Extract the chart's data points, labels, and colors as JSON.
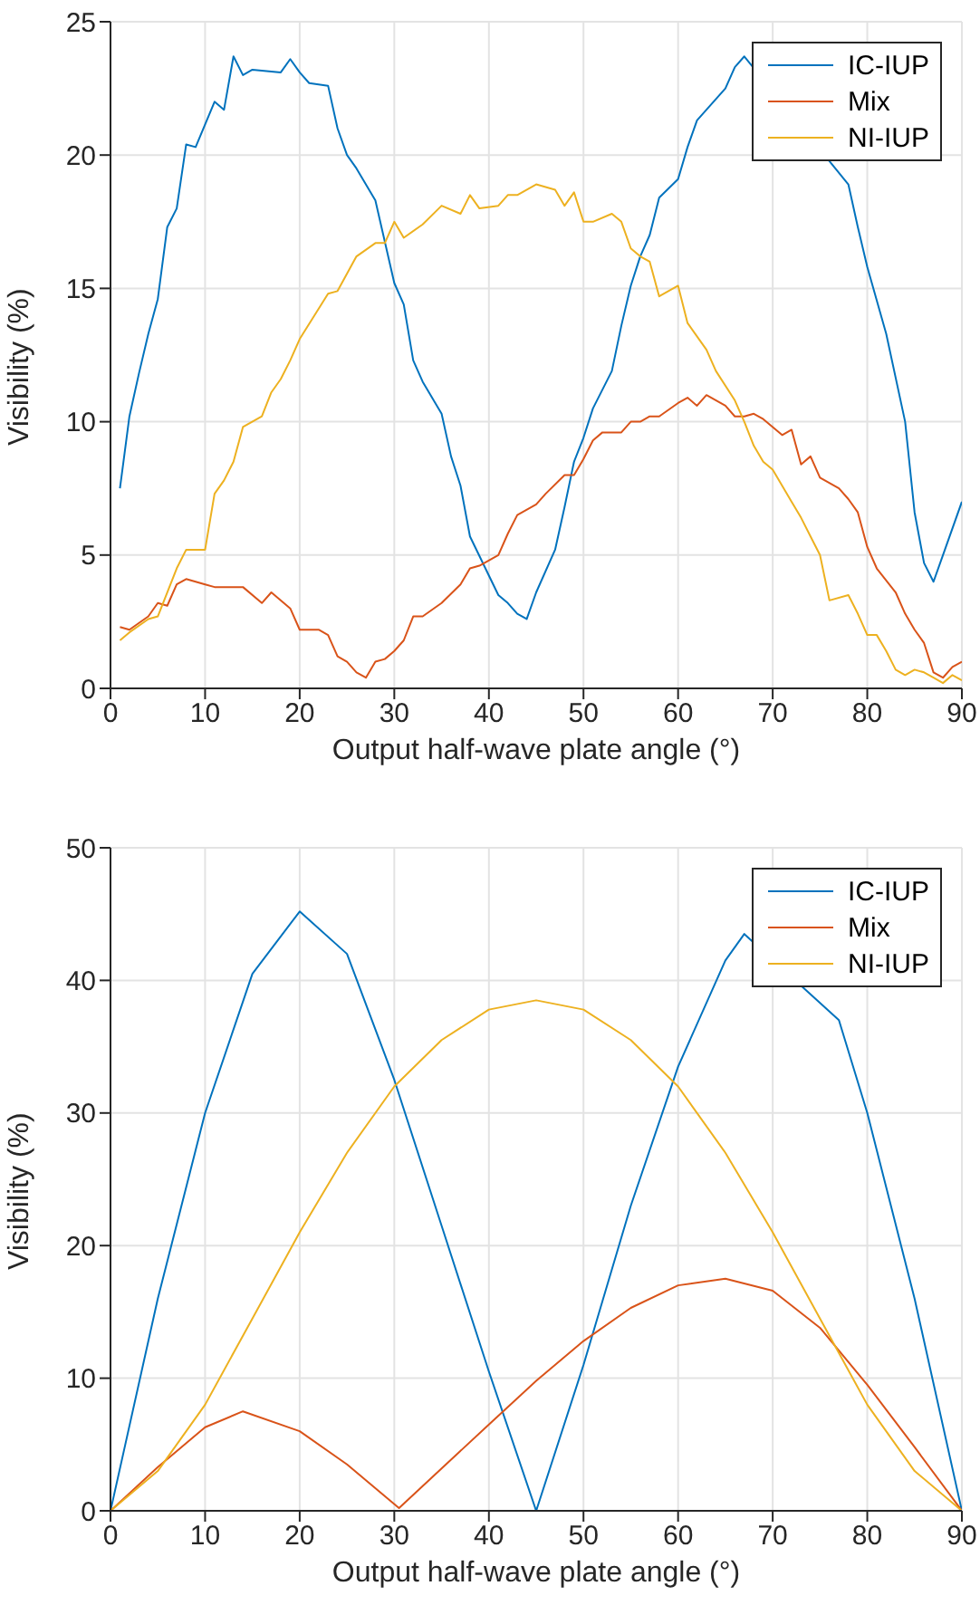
{
  "chart_data": [
    {
      "type": "line",
      "xlabel": "Output half-wave plate angle (°)",
      "ylabel": "Visibility (%)",
      "xlim": [
        0,
        90
      ],
      "xticks": [
        0,
        10,
        20,
        30,
        40,
        50,
        60,
        70,
        80,
        90
      ],
      "ylim": [
        0,
        25
      ],
      "yticks": [
        0,
        5,
        10,
        15,
        20,
        25
      ],
      "grid": true,
      "legend": "top right",
      "series": [
        {
          "name": "IC-IUP",
          "color": "#0072bd",
          "x": [
            1,
            2,
            3,
            4,
            5,
            6,
            7,
            8,
            9,
            11,
            12,
            13,
            14,
            15,
            18,
            19,
            20,
            21,
            23,
            24,
            25,
            26,
            28,
            30,
            31,
            32,
            33,
            35,
            36,
            37,
            38,
            41,
            42,
            43,
            44,
            45,
            47,
            48,
            49,
            50,
            51,
            53,
            54,
            55,
            56,
            57,
            58,
            60,
            61,
            62,
            63,
            65,
            66,
            67,
            78,
            79,
            80,
            82,
            84,
            85,
            86,
            87,
            88,
            90
          ],
          "values": [
            7.5,
            10.2,
            11.8,
            13.3,
            14.6,
            17.3,
            18.0,
            20.4,
            20.3,
            22.0,
            21.7,
            23.7,
            23.0,
            23.2,
            23.1,
            23.6,
            23.1,
            22.7,
            22.6,
            21.0,
            20.0,
            19.5,
            18.3,
            15.2,
            14.4,
            12.3,
            11.5,
            10.3,
            8.7,
            7.6,
            5.7,
            3.5,
            3.2,
            2.8,
            2.6,
            3.6,
            5.2,
            6.8,
            8.5,
            9.4,
            10.5,
            11.9,
            13.6,
            15.1,
            16.2,
            17.0,
            18.4,
            19.1,
            20.3,
            21.3,
            21.7,
            22.5,
            23.3,
            23.7,
            18.9,
            17.3,
            15.8,
            13.3,
            10.0,
            6.6,
            4.7,
            4.0,
            5.0,
            7.0
          ]
        },
        {
          "name": "Mix",
          "color": "#d95319",
          "x": [
            1,
            2,
            4,
            5,
            6,
            7,
            8,
            10,
            11,
            12,
            14,
            16,
            17,
            19,
            20,
            22,
            23,
            24,
            25,
            26,
            27,
            28,
            29,
            30,
            31,
            32,
            33,
            35,
            37,
            38,
            39,
            41,
            42,
            43,
            45,
            46,
            48,
            49,
            50,
            51,
            52,
            54,
            55,
            56,
            57,
            58,
            60,
            61,
            62,
            63,
            65,
            66,
            67,
            68,
            69,
            71,
            72,
            73,
            74,
            75,
            77,
            78,
            79,
            80,
            81,
            83,
            84,
            85,
            86,
            87,
            88,
            89,
            90
          ],
          "values": [
            2.3,
            2.2,
            2.7,
            3.2,
            3.1,
            3.9,
            4.1,
            3.9,
            3.8,
            3.8,
            3.8,
            3.2,
            3.6,
            3.0,
            2.2,
            2.2,
            2.0,
            1.2,
            1.0,
            0.6,
            0.4,
            1.0,
            1.1,
            1.4,
            1.8,
            2.7,
            2.7,
            3.2,
            3.9,
            4.5,
            4.6,
            5.0,
            5.8,
            6.5,
            6.9,
            7.3,
            8.0,
            8.0,
            8.6,
            9.3,
            9.6,
            9.6,
            10.0,
            10.0,
            10.2,
            10.2,
            10.7,
            10.9,
            10.6,
            11.0,
            10.6,
            10.2,
            10.2,
            10.3,
            10.1,
            9.5,
            9.7,
            8.4,
            8.7,
            7.9,
            7.5,
            7.1,
            6.6,
            5.3,
            4.5,
            3.6,
            2.8,
            2.2,
            1.7,
            0.6,
            0.4,
            0.8,
            1.0
          ]
        },
        {
          "name": "NI-IUP",
          "color": "#edb120",
          "x": [
            1,
            2,
            4,
            5,
            6,
            7,
            8,
            10,
            11,
            12,
            13,
            14,
            16,
            17,
            18,
            19,
            20,
            23,
            24,
            26,
            28,
            29,
            30,
            31,
            33,
            35,
            37,
            38,
            39,
            41,
            42,
            43,
            45,
            47,
            48,
            49,
            50,
            51,
            53,
            54,
            55,
            56,
            57,
            58,
            60,
            61,
            63,
            64,
            66,
            67,
            68,
            69,
            70,
            72,
            73,
            74,
            75,
            76,
            78,
            79,
            80,
            81,
            82,
            83,
            84,
            85,
            86,
            87,
            88,
            89,
            90
          ],
          "values": [
            1.8,
            2.1,
            2.6,
            2.7,
            3.6,
            4.5,
            5.2,
            5.2,
            7.3,
            7.8,
            8.5,
            9.8,
            10.2,
            11.1,
            11.6,
            12.3,
            13.1,
            14.8,
            14.9,
            16.2,
            16.7,
            16.7,
            17.5,
            16.9,
            17.4,
            18.1,
            17.8,
            18.5,
            18.0,
            18.1,
            18.5,
            18.5,
            18.9,
            18.7,
            18.1,
            18.6,
            17.5,
            17.5,
            17.8,
            17.5,
            16.5,
            16.2,
            16.0,
            14.7,
            15.1,
            13.7,
            12.7,
            11.9,
            10.8,
            10.0,
            9.1,
            8.5,
            8.2,
            7.0,
            6.4,
            5.7,
            5.0,
            3.3,
            3.5,
            2.8,
            2.0,
            2.0,
            1.4,
            0.7,
            0.5,
            0.7,
            0.6,
            0.4,
            0.2,
            0.5,
            0.3
          ]
        }
      ]
    },
    {
      "type": "line",
      "xlabel": "Output half-wave plate angle (°)",
      "ylabel": "Visibility (%)",
      "xlim": [
        0,
        90
      ],
      "xticks": [
        0,
        10,
        20,
        30,
        40,
        50,
        60,
        70,
        80,
        90
      ],
      "ylim": [
        0,
        50
      ],
      "yticks": [
        0,
        10,
        20,
        30,
        40,
        50
      ],
      "grid": true,
      "legend": "top right",
      "series": [
        {
          "name": "IC-IUP",
          "color": "#0072bd",
          "x": [
            0,
            5,
            10,
            15,
            20,
            25,
            30,
            35,
            40,
            45,
            50,
            55,
            60,
            65,
            67,
            77,
            80,
            85,
            90
          ],
          "values": [
            0,
            16,
            30,
            40.5,
            45.2,
            42,
            32.5,
            21.5,
            10.5,
            0,
            11,
            23,
            33.5,
            41.5,
            43.5,
            37,
            30,
            16,
            0
          ]
        },
        {
          "name": "Mix",
          "color": "#d95319",
          "x": [
            0,
            5,
            10,
            14,
            20,
            25,
            30.5,
            35,
            40,
            45,
            50,
            55,
            60,
            65,
            70,
            75,
            80,
            85,
            90
          ],
          "values": [
            0,
            3.3,
            6.3,
            7.5,
            6,
            3.5,
            0.2,
            3.2,
            6.5,
            9.8,
            12.8,
            15.3,
            17,
            17.5,
            16.6,
            13.8,
            9.5,
            4.8,
            0
          ]
        },
        {
          "name": "NI-IUP",
          "color": "#edb120",
          "x": [
            0,
            5,
            10,
            15,
            20,
            25,
            30,
            35,
            40,
            45,
            50,
            55,
            60,
            65,
            70,
            75,
            80,
            85,
            90
          ],
          "values": [
            0,
            3,
            8,
            14.5,
            21,
            27,
            32,
            35.5,
            37.8,
            38.5,
            37.8,
            35.5,
            32,
            27,
            21,
            14.5,
            8,
            3,
            0
          ]
        }
      ]
    }
  ]
}
